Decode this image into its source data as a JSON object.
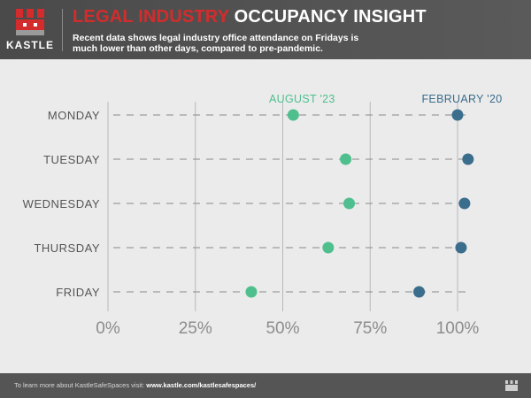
{
  "brand": {
    "name": "KASTLE",
    "logo_colors": [
      "#d42c2c",
      "#9a9a9a",
      "#ffffff"
    ]
  },
  "header": {
    "title_part1": "LEGAL INDUSTRY",
    "title_part2": " OCCUPANCY INSIGHT",
    "subtitle": "Recent data shows legal industry office attendance on Fridays is much lower than other days, compared to pre-pandemic.",
    "title_red": "#d42c2c"
  },
  "chart_data": {
    "type": "scatter",
    "categories": [
      "MONDAY",
      "TUESDAY",
      "WEDNESDAY",
      "THURSDAY",
      "FRIDAY"
    ],
    "series": [
      {
        "name": "AUGUST '23",
        "color": "#4fbf8e",
        "values": [
          53,
          68,
          69,
          63,
          41
        ]
      },
      {
        "name": "FEBRUARY '20",
        "color": "#3b6e8c",
        "values": [
          100,
          103,
          102,
          101,
          89
        ]
      }
    ],
    "xticks": [
      0,
      25,
      50,
      75,
      100
    ],
    "xtick_labels": [
      "0%",
      "25%",
      "50%",
      "75%",
      "100%"
    ],
    "xlim": [
      0,
      103
    ],
    "grid": "vertical",
    "legend": "labels above the first row"
  },
  "footer": {
    "text": "To learn more about KastleSafeSpaces visit: ",
    "link": "www.kastle.com/kastlesafespaces/"
  }
}
